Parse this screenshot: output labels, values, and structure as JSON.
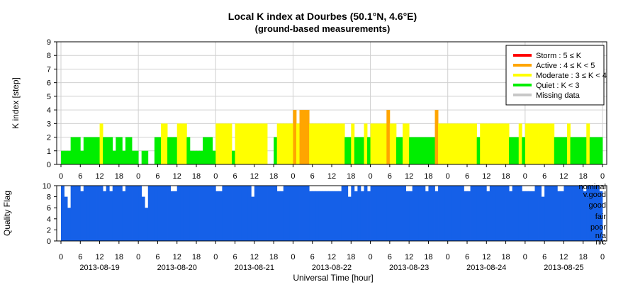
{
  "chart_data": {
    "type": "bar",
    "title": "Local K index at Dourbes (50.1°N, 4.6°E)",
    "subtitle": "(ground-based measurements)",
    "xlabel": "Universal Time [hour]",
    "time_ticks": [
      "0",
      "6",
      "12",
      "18",
      "0",
      "6",
      "12",
      "18",
      "0",
      "6",
      "12",
      "18",
      "0",
      "6",
      "12",
      "18",
      "0",
      "6",
      "12",
      "18",
      "0",
      "6",
      "12",
      "18",
      "0",
      "6",
      "12",
      "18",
      "0"
    ],
    "dates": [
      "2013-08-19",
      "2013-08-20",
      "2013-08-21",
      "2013-08-22",
      "2013-08-23",
      "2013-08-24",
      "2013-08-25"
    ],
    "k_panel": {
      "ylabel": "K index [step]",
      "ylim": [
        0,
        9
      ],
      "yticks": [
        "0",
        "1",
        "2",
        "3",
        "4",
        "5",
        "6",
        "7",
        "8",
        "9"
      ],
      "grid": true,
      "legend_position": "top-right",
      "legend": [
        {
          "label": "Storm : 5 ≤ K",
          "color": "#ff0000"
        },
        {
          "label": "Active : 4 ≤ K < 5",
          "color": "#ffa500"
        },
        {
          "label": "Moderate : 3 ≤ K < 4",
          "color": "#ffff00"
        },
        {
          "label": "Quiet : K < 3",
          "color": "#00ee00"
        },
        {
          "label": "Missing data",
          "color": "#c8c8c8"
        }
      ],
      "interval_hours": 1,
      "values": [
        1,
        1,
        1,
        2,
        2,
        2,
        1,
        2,
        2,
        2,
        2,
        2,
        3,
        2,
        2,
        2,
        1,
        2,
        2,
        1,
        2,
        2,
        1,
        1,
        0,
        1,
        1,
        0,
        0,
        2,
        2,
        3,
        3,
        2,
        2,
        2,
        3,
        3,
        3,
        2,
        1,
        1,
        1,
        1,
        2,
        2,
        2,
        1,
        3,
        3,
        3,
        3,
        3,
        1,
        3,
        3,
        3,
        3,
        3,
        3,
        3,
        3,
        3,
        3,
        0,
        0,
        2,
        3,
        3,
        3,
        3,
        3,
        4,
        3,
        4,
        4,
        4,
        3,
        3,
        3,
        3,
        3,
        3,
        3,
        3,
        3,
        3,
        3,
        2,
        2,
        3,
        2,
        2,
        2,
        3,
        2,
        3,
        3,
        3,
        3,
        3,
        4,
        3,
        3,
        2,
        2,
        3,
        3,
        2,
        2,
        2,
        2,
        2,
        2,
        2,
        2,
        4,
        3,
        3,
        3,
        3,
        3,
        3,
        3,
        3,
        3,
        3,
        3,
        3,
        2,
        3,
        3,
        3,
        3,
        3,
        3,
        3,
        3,
        3,
        2,
        2,
        2,
        3,
        2,
        3,
        3,
        3,
        3,
        3,
        3,
        3,
        3,
        3,
        2,
        2,
        2,
        2,
        3,
        2,
        2,
        2,
        2,
        2,
        3,
        2,
        2,
        2,
        2
      ],
      "colors_by_k": {
        "0": "#00ee00",
        "1": "#00ee00",
        "2": "#00ee00",
        "3": "#ffff00",
        "4": "#ffa500"
      }
    },
    "quality_panel": {
      "ylabel": "Quality Flag",
      "ylim": [
        0,
        10
      ],
      "yticks": [
        "0",
        "2",
        "4",
        "6",
        "8",
        "10"
      ],
      "level_labels": [
        "nominal",
        "v.good",
        "good",
        "fair",
        "poor",
        "n/a",
        "n/c"
      ],
      "bar_color": "#1560e8",
      "interval_hours": 1,
      "values": [
        10,
        8,
        6,
        10,
        10,
        10,
        9,
        10,
        10,
        10,
        10,
        10,
        10,
        9,
        10,
        9,
        10,
        10,
        10,
        9,
        10,
        10,
        10,
        10,
        10,
        8,
        6,
        10,
        10,
        10,
        10,
        10,
        10,
        10,
        9,
        9,
        10,
        10,
        10,
        10,
        10,
        10,
        10,
        10,
        10,
        10,
        10,
        10,
        9,
        9,
        10,
        10,
        10,
        10,
        10,
        10,
        10,
        10,
        10,
        8,
        10,
        10,
        10,
        10,
        10,
        10,
        10,
        9,
        9,
        10,
        10,
        10,
        10,
        10,
        10,
        10,
        10,
        9,
        9,
        9,
        9,
        9,
        9,
        9,
        9,
        9,
        9,
        10,
        10,
        8,
        10,
        9,
        10,
        9,
        10,
        9,
        10,
        10,
        10,
        10,
        10,
        10,
        10,
        10,
        10,
        10,
        10,
        9,
        9,
        10,
        10,
        10,
        10,
        9,
        10,
        10,
        9,
        10,
        10,
        10,
        10,
        10,
        10,
        10,
        10,
        9,
        9,
        10,
        10,
        10,
        10,
        10,
        9,
        10,
        10,
        10,
        10,
        10,
        10,
        9,
        10,
        10,
        10,
        9,
        9,
        9,
        9,
        10,
        10,
        8,
        10,
        10,
        10,
        10,
        9,
        9,
        10,
        10,
        10,
        10,
        10,
        10,
        9,
        10,
        10,
        10,
        10,
        9
      ]
    }
  }
}
